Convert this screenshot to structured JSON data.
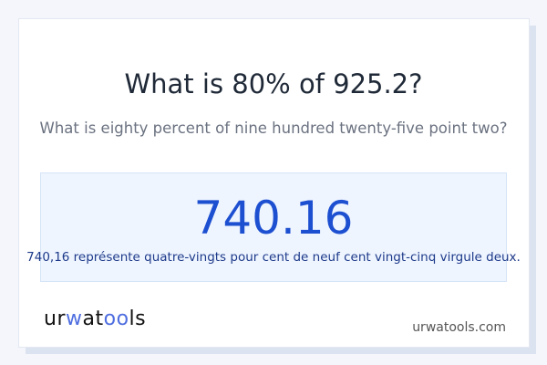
{
  "question": "What is 80% of 925.2?",
  "question_words": "What is eighty percent of nine hundred twenty-five point two?",
  "result": "740.16",
  "result_words": "740,16 représente quatre-vingts pour cent de neuf cent vingt-cinq virgule deux.",
  "logo": {
    "part1": "ur",
    "part2": "w",
    "part3": "at",
    "part4": "oo",
    "part5": "ls"
  },
  "site": "urwatools.com",
  "colors": {
    "accent": "#1d4fd1",
    "box_bg": "#eef5ff"
  }
}
